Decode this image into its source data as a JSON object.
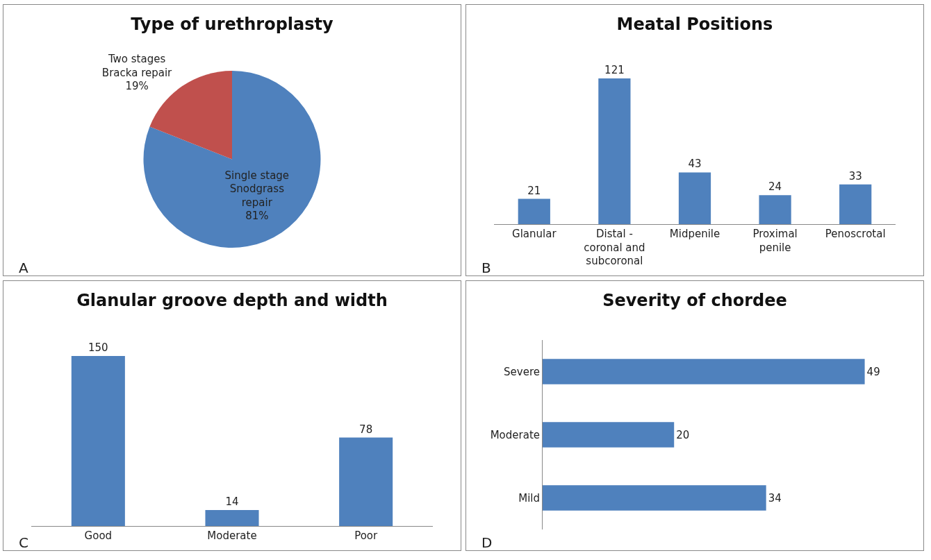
{
  "chart_data": [
    {
      "type": "pie",
      "title": "Type of urethroplasty",
      "categories": [
        "Single stage Snodgrass repair",
        "Two stages Bracka repair"
      ],
      "values": [
        81,
        19
      ],
      "value_labels": [
        "81%",
        "19%"
      ],
      "colors": [
        "#4f81bd",
        "#c0504d"
      ],
      "annotations": [
        "A"
      ]
    },
    {
      "type": "bar",
      "title": "Meatal Positions",
      "categories": [
        "Glanular",
        "Distal - coronal and subcoronal",
        "Midpenile",
        "Proximal penile",
        "Penoscrotal"
      ],
      "values": [
        21,
        121,
        43,
        24,
        33
      ],
      "color": "#4f81bd",
      "data_labels": true,
      "annotations": [
        "B"
      ]
    },
    {
      "type": "bar",
      "title": "Glanular groove depth and width",
      "categories": [
        "Good",
        "Moderate",
        "Poor"
      ],
      "values": [
        150,
        14,
        78
      ],
      "color": "#4f81bd",
      "data_labels": true,
      "annotations": [
        "C"
      ]
    },
    {
      "type": "bar",
      "orientation": "horizontal",
      "title": "Severity of chordee",
      "categories": [
        "Severe",
        "Moderate",
        "Mild"
      ],
      "values": [
        49,
        20,
        34
      ],
      "color": "#4f81bd",
      "data_labels": true,
      "annotations": [
        "D"
      ]
    }
  ]
}
